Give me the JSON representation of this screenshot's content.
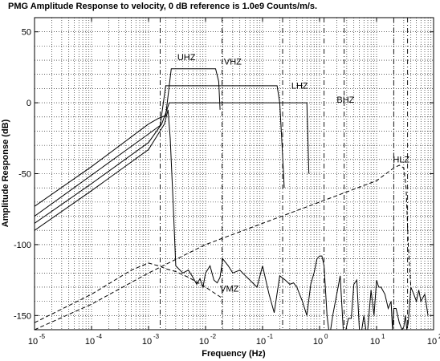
{
  "chart_data": {
    "type": "line",
    "title": "PMG Amplitude Response to velocity, 0 dB reference is 1.0e9 Counts/m/s.",
    "xlabel": "Frequency (Hz)",
    "ylabel": "Amplitude Response (dB)",
    "xscale": "log",
    "xlim": [
      1e-05,
      100
    ],
    "ylim": [
      -160,
      60
    ],
    "grid": true,
    "x_ticks": [
      {
        "value": 1e-05,
        "base": "10",
        "exp": "-5"
      },
      {
        "value": 0.0001,
        "base": "10",
        "exp": "-4"
      },
      {
        "value": 0.001,
        "base": "10",
        "exp": "-3"
      },
      {
        "value": 0.01,
        "base": "10",
        "exp": "-2"
      },
      {
        "value": 0.1,
        "base": "10",
        "exp": "-1"
      },
      {
        "value": 1,
        "base": "10",
        "exp": "0"
      },
      {
        "value": 10,
        "base": "10",
        "exp": "1"
      },
      {
        "value": 100,
        "base": "10",
        "exp": "2"
      }
    ],
    "y_ticks": [
      {
        "value": 50,
        "label": "50"
      },
      {
        "value": 0,
        "label": "0"
      },
      {
        "value": -50,
        "label": "-50"
      },
      {
        "value": -100,
        "label": "-100"
      },
      {
        "value": -150,
        "label": "-150"
      }
    ],
    "vertical_markers": [
      0.0016,
      0.0195,
      0.225,
      1.2,
      2.7,
      20,
      35
    ],
    "series": [
      {
        "name": "UHZ",
        "style": "solid",
        "label_at": [
          0.0032,
          30
        ],
        "x": [
          1e-05,
          0.0001,
          0.001,
          0.0015,
          0.002,
          0.0025,
          0.01,
          0.015,
          0.017,
          0.018
        ],
        "y": [
          -73,
          -45,
          -15,
          -11,
          -9,
          24,
          24,
          24,
          15,
          -5
        ]
      },
      {
        "name": "VHZ",
        "style": "solid",
        "label_at": [
          0.021,
          27
        ],
        "x": [
          1e-05,
          0.0001,
          0.001,
          0.0016,
          0.002,
          0.022,
          0.18,
          0.2,
          0.22,
          0.24
        ],
        "y": [
          -80,
          -51,
          -22,
          -16,
          12,
          12,
          12,
          0,
          -30,
          -60
        ]
      },
      {
        "name": "LHZ",
        "style": "solid",
        "label_at": [
          0.32,
          10
        ],
        "x": [
          1e-05,
          0.0001,
          0.001,
          0.0017,
          0.0021,
          0.0023,
          0.03,
          0.2,
          0.35,
          0.6,
          0.65
        ],
        "y": [
          -85,
          -57,
          -28,
          -15,
          -5,
          0,
          0,
          0,
          0,
          0,
          -50
        ]
      },
      {
        "name": "BHZ",
        "style": "solid",
        "label_at": [
          2.0,
          0
        ],
        "x": [
          1e-05,
          0.0001,
          0.001,
          0.0019,
          0.0022,
          0.0024,
          0.0027,
          0.003,
          0.004,
          0.005,
          0.006,
          0.007,
          0.008,
          0.009,
          0.01,
          0.012,
          0.014,
          0.016,
          0.018,
          0.02,
          0.025,
          0.03,
          0.04,
          0.05,
          0.06,
          0.08,
          0.1,
          0.13,
          0.16,
          0.2,
          0.25,
          0.3,
          0.35,
          0.4,
          0.5,
          0.6,
          0.7,
          0.8,
          0.9,
          1.0,
          1.1,
          1.2,
          1.35,
          1.5,
          1.7,
          2.0,
          2.3,
          2.6,
          2.9,
          3.2,
          3.6,
          4.0,
          4.5,
          5.0,
          5.5,
          6.0,
          6.5,
          7.0,
          8.0,
          9.0,
          10.0,
          10.5,
          11,
          12,
          14,
          16,
          18,
          19,
          20,
          22,
          25,
          28,
          30,
          32,
          34,
          36,
          40,
          45,
          50,
          55,
          60,
          70,
          80
        ],
        "y": [
          -90,
          -62,
          -33,
          -15,
          -5,
          -25,
          -70,
          -115,
          -120,
          -118,
          -123,
          -128,
          -124,
          -130,
          -120,
          -115,
          -125,
          -127,
          -123,
          -110,
          -115,
          -120,
          -118,
          -122,
          -125,
          -130,
          -115,
          -135,
          -148,
          -122,
          -125,
          -128,
          -127,
          -130,
          -140,
          -150,
          -128,
          -120,
          -110,
          -108,
          -108,
          -115,
          -150,
          -165,
          -150,
          -135,
          -122,
          -160,
          -160,
          -152,
          -152,
          -128,
          -125,
          -160,
          -160,
          -150,
          -160,
          -160,
          -132,
          -150,
          -125,
          -128,
          -130,
          -130,
          -135,
          -145,
          -140,
          -160,
          -145,
          -145,
          -155,
          -160,
          -158,
          -150,
          -160,
          -155,
          -130,
          -135,
          -140,
          -132,
          -140,
          -135,
          -150
        ]
      },
      {
        "name": "HLZ",
        "style": "dashed",
        "label_at": [
          38,
          -42
        ],
        "x": [
          1e-05,
          0.0001,
          0.001,
          0.01,
          0.1,
          1,
          10,
          20,
          25,
          30,
          33,
          36,
          40
        ],
        "y": [
          -160,
          -142,
          -120,
          -100,
          -85,
          -70,
          -55,
          -46,
          -44,
          -46,
          -60,
          -100,
          -130
        ]
      },
      {
        "name": "VMZ",
        "style": "dashed",
        "label_at": [
          0.018,
          -133
        ],
        "x": [
          1e-05,
          0.0001,
          0.0005,
          0.001,
          0.0015,
          0.002,
          0.003,
          0.005,
          0.01,
          0.02
        ],
        "y": [
          -155,
          -135,
          -118,
          -113,
          -115,
          -117,
          -119,
          -123,
          -130,
          -138
        ]
      }
    ]
  },
  "labels": {
    "UHZ": "UHZ",
    "VHZ": "VHZ",
    "LHZ": "LHZ",
    "BHZ": "BHZ",
    "HLZ": "HLZ",
    "VMZ": "VMZ"
  }
}
